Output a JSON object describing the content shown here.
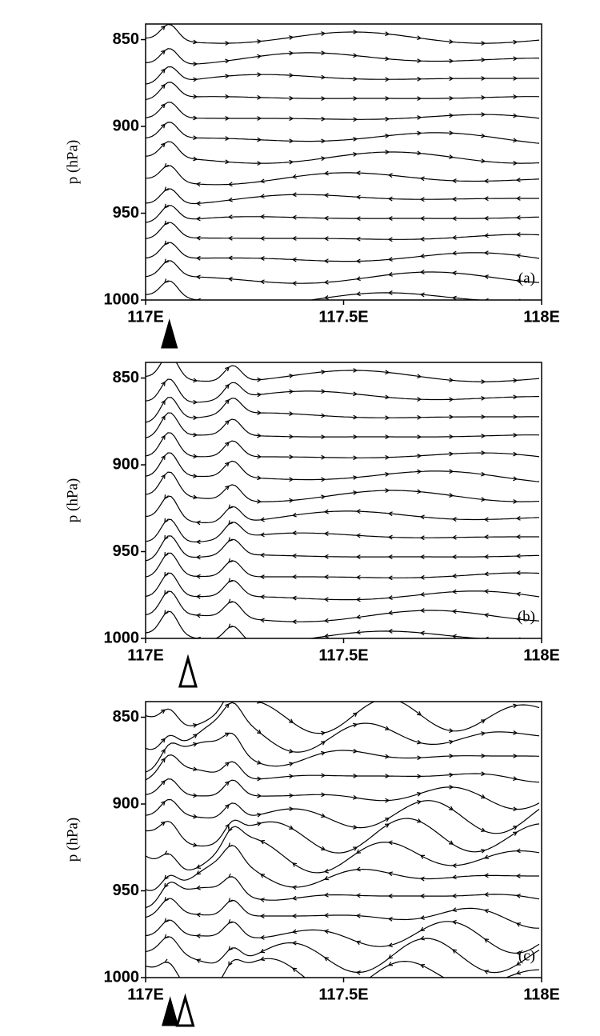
{
  "chart_data": [
    {
      "type": "streamline",
      "panel_label": "(a)",
      "ylabel": "p (hPa)",
      "xlim": [
        117,
        118
      ],
      "xticks": [
        {
          "value": 117,
          "label": "117E"
        },
        {
          "value": 117.5,
          "label": "117.5E"
        },
        {
          "value": 118,
          "label": "118E"
        }
      ],
      "ylim": [
        1000,
        841
      ],
      "yticks": [
        850,
        900,
        950,
        1000
      ],
      "markers": [
        {
          "x": 117.06,
          "style": "filled"
        }
      ]
    },
    {
      "type": "streamline",
      "panel_label": "(b)",
      "ylabel": "p (hPa)",
      "xlim": [
        117,
        118
      ],
      "xticks": [
        {
          "value": 117,
          "label": "117E"
        },
        {
          "value": 117.5,
          "label": "117.5E"
        },
        {
          "value": 118,
          "label": "118E"
        }
      ],
      "ylim": [
        1000,
        841
      ],
      "yticks": [
        850,
        900,
        950,
        1000
      ],
      "markers": [
        {
          "x": 117.107,
          "style": "hollow"
        }
      ]
    },
    {
      "type": "streamline",
      "panel_label": "(c)",
      "ylabel": "p (hPa)",
      "xlim": [
        117,
        118
      ],
      "xticks": [
        {
          "value": 117,
          "label": "117E"
        },
        {
          "value": 117.5,
          "label": "117.5E"
        },
        {
          "value": 118,
          "label": "118E"
        }
      ],
      "ylim": [
        1000,
        841
      ],
      "yticks": [
        850,
        900,
        950,
        1000
      ],
      "markers": [
        {
          "x": 117.062,
          "style": "filled"
        },
        {
          "x": 117.1,
          "style": "hollow"
        }
      ]
    }
  ]
}
